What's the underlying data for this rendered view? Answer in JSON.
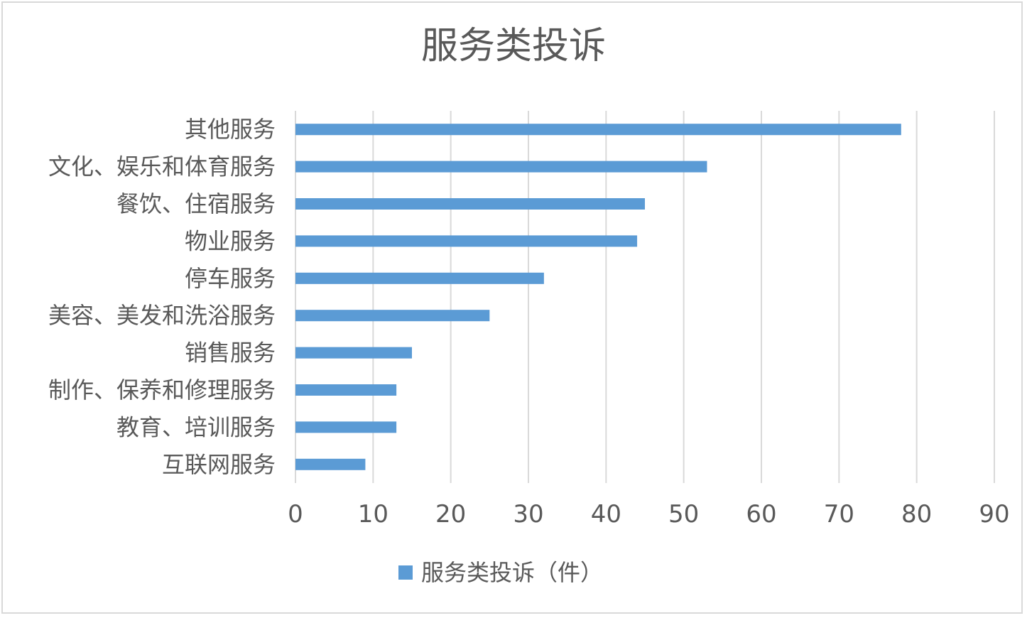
{
  "chart_data": {
    "type": "bar",
    "orientation": "horizontal",
    "title": "服务类投诉",
    "categories": [
      "其他服务",
      "文化、娱乐和体育服务",
      "餐饮、住宿服务",
      "物业服务",
      "停车服务",
      "美容、美发和洗浴服务",
      "销售服务",
      "制作、保养和修理服务",
      "教育、培训服务",
      "互联网服务"
    ],
    "series": [
      {
        "name": "服务类投诉（件）",
        "color": "#5b9bd5",
        "values": [
          78,
          53,
          45,
          44,
          32,
          25,
          15,
          13,
          13,
          9
        ]
      }
    ],
    "xlim": [
      0,
      90
    ],
    "x_ticks": [
      0,
      10,
      20,
      30,
      40,
      50,
      60,
      70,
      80,
      90
    ],
    "grid": "vertical",
    "legend_position": "bottom"
  }
}
